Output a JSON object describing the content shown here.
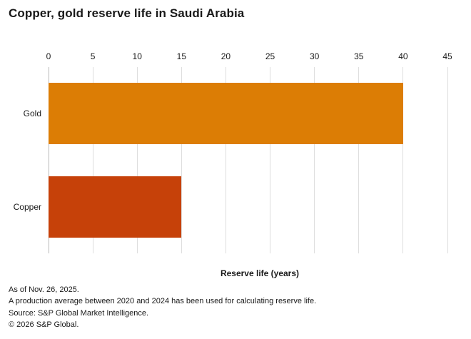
{
  "title": "Copper, gold reserve life in Saudi Arabia",
  "chart_data": {
    "type": "bar",
    "orientation": "horizontal",
    "title": "Copper, gold reserve life in Saudi Arabia",
    "categories": [
      "Gold",
      "Copper"
    ],
    "values": [
      40,
      15
    ],
    "bar_colors": [
      "#dc7d05",
      "#c64109"
    ],
    "xlabel": "Reserve life (years)",
    "ylabel": "",
    "xlim": [
      0,
      45
    ],
    "xticks": [
      0,
      5,
      10,
      15,
      20,
      25,
      30,
      35,
      40,
      45
    ],
    "tick_position": "top",
    "grid": "vertical",
    "legend": "none"
  },
  "colors": {
    "gold_bar": "#dc7d05",
    "copper_bar": "#c64109",
    "gridline": "#dedede",
    "zero_axis_line": "#b9b9b9",
    "text": "#191919",
    "background": "#ffffff"
  },
  "footer": {
    "lines": [
      "As of Nov. 26, 2025.",
      "A production average between 2020 and 2024 has been used for calculating reserve life.",
      "Source: S&P Global Market Intelligence.",
      "© 2026 S&P Global."
    ]
  }
}
